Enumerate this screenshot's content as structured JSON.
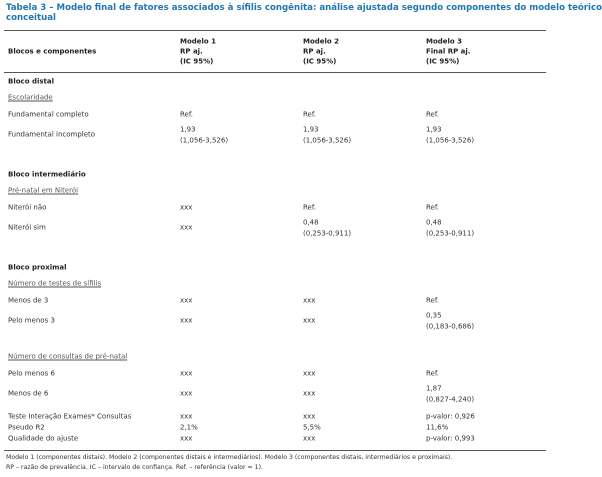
{
  "header": {
    "title": [
      "Tabela 3 – Modelo final de fatores associados à sífilis congênita: análise ajustada segundo componentes do modelo teórico",
      "conceitual"
    ]
  },
  "table": {
    "columns": [
      "Blocos e componentes",
      [
        "Modelo 1",
        "RP aj.",
        "(IC 95%)"
      ],
      [
        "Modelo 2",
        "RP aj.",
        "(IC 95%)"
      ],
      [
        "Modelo 3",
        "Final RP aj.",
        "(IC 95%)"
      ]
    ],
    "sections": [
      {
        "title": "Bloco distal",
        "groups": [
          {
            "title": "Escolaridade",
            "rows": [
              {
                "label": "Fundamental completo",
                "cells": [
                  [
                    "Ref."
                  ],
                  [
                    "Ref."
                  ],
                  [
                    "Ref."
                  ]
                ]
              },
              {
                "label": "Fundamental incompleto",
                "cells": [
                  [
                    "1,93",
                    "(1,056-3,526)"
                  ],
                  [
                    "1,93",
                    "(1,056-3,526)"
                  ],
                  [
                    "1,93",
                    "(1,056-3,526)"
                  ]
                ]
              }
            ]
          }
        ]
      },
      {
        "title": "Bloco intermediário",
        "groups": [
          {
            "title": "Pré-natal em Niterói",
            "rows": [
              {
                "label": "Niterói não",
                "cells": [
                  [
                    "xxx"
                  ],
                  [
                    "Ref."
                  ],
                  [
                    "Ref."
                  ]
                ]
              },
              {
                "label": "Niterói sim",
                "cells": [
                  [
                    "xxx"
                  ],
                  [
                    "0,48",
                    "(0,253-0,911)"
                  ],
                  [
                    "0,48",
                    "(0,253-0,911)"
                  ]
                ]
              }
            ]
          }
        ]
      },
      {
        "title": "Bloco proximal",
        "groups": [
          {
            "title": "Número de testes de sífilis",
            "rows": [
              {
                "label": "Menos de 3",
                "cells": [
                  [
                    "xxx"
                  ],
                  [
                    "xxx"
                  ],
                  [
                    "Ref."
                  ]
                ]
              },
              {
                "label": "Pelo menos 3",
                "cells": [
                  [
                    "xxx"
                  ],
                  [
                    "xxx"
                  ],
                  [
                    "0,35",
                    "(0,183-0,686)"
                  ]
                ]
              }
            ]
          },
          {
            "title": "Número de consultas de pré-natal",
            "rows": [
              {
                "label": "Pelo menos 6",
                "cells": [
                  [
                    "xxx"
                  ],
                  [
                    "xxx"
                  ],
                  [
                    "Ref."
                  ]
                ]
              },
              {
                "label": "Menos de 6",
                "cells": [
                  [
                    "xxx"
                  ],
                  [
                    "xxx"
                  ],
                  [
                    "1,87",
                    "(0,827-4,240)"
                  ]
                ]
              }
            ]
          }
        ]
      }
    ],
    "summary": [
      {
        "label": "Teste Interação Exames* Consultas",
        "cells": [
          "xxx",
          "xxx",
          "p-valor: 0,926"
        ]
      },
      {
        "label": "Pseudo R2",
        "cells": [
          "2,1%",
          "5,5%",
          "11,6%"
        ]
      },
      {
        "label": "Qualidade do ajuste",
        "cells": [
          "xxx",
          "xxx",
          "p-valor: 0,993"
        ]
      }
    ]
  },
  "footnotes": [
    "Modelo 1 (componentes distais). Modelo 2 (componentes distais e intermediários). Modelo 3 (componentes distais, intermediários e proximais).",
    "RP – razão de prevalência. IC – intervalo de confiança. Ref. – referência (valor = 1)."
  ]
}
